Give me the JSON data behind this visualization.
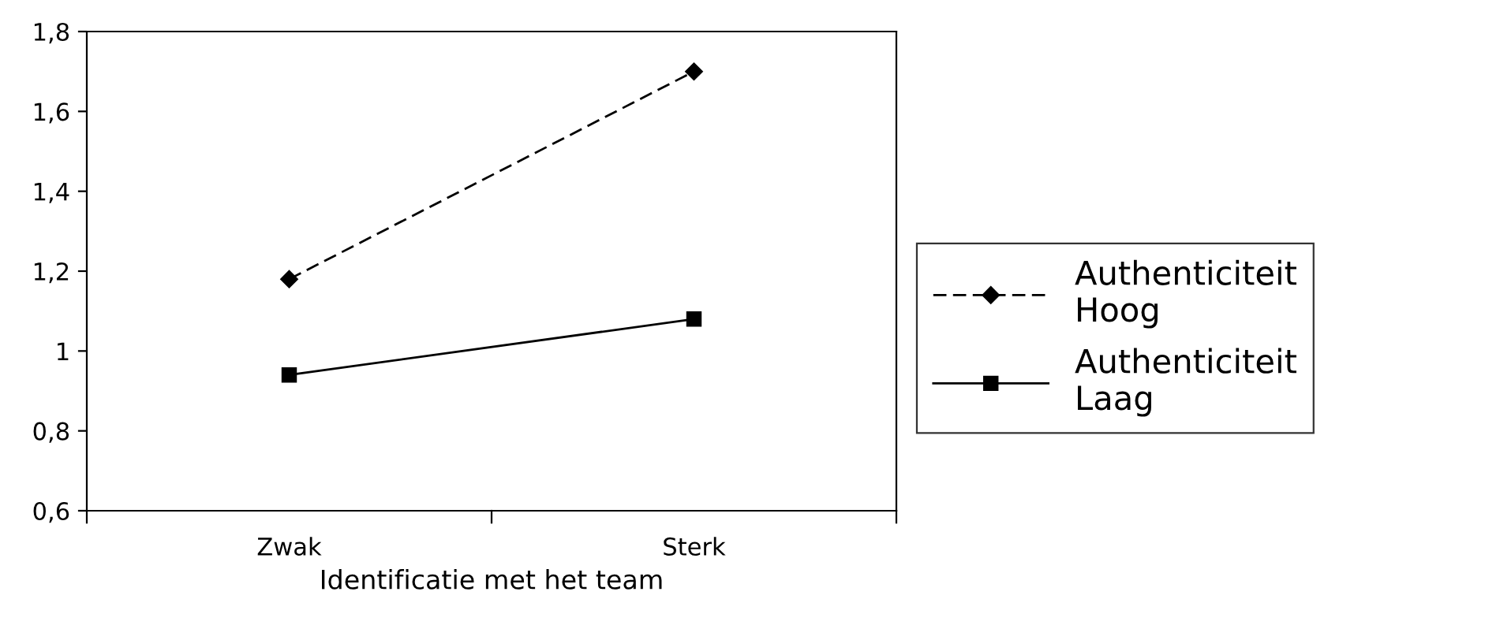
{
  "chart_data": {
    "type": "line",
    "xlabel": "Identificatie met het team",
    "categories": [
      "Zwak",
      "Sterk"
    ],
    "series": [
      {
        "name": "Authenticiteit\nHoog",
        "color": "#000000",
        "values": [
          1.18,
          1.7
        ],
        "marker": "diamond",
        "line_style": "dashed"
      },
      {
        "name": "Authenticiteit\nLaag",
        "color": "#000000",
        "values": [
          0.94,
          1.08
        ],
        "marker": "square",
        "line_style": "solid"
      }
    ],
    "ylim": [
      0.6,
      1.8
    ],
    "yticks": [
      {
        "value": 0.6,
        "label": "0,6"
      },
      {
        "value": 0.8,
        "label": "0,8"
      },
      1,
      {
        "value": 1.2,
        "label": "1,2"
      },
      {
        "value": 1.4,
        "label": "1,4"
      },
      {
        "value": 1.6,
        "label": "1,6"
      },
      {
        "value": 1.8,
        "label": "1,8"
      }
    ],
    "grid": false,
    "legend": "right"
  }
}
